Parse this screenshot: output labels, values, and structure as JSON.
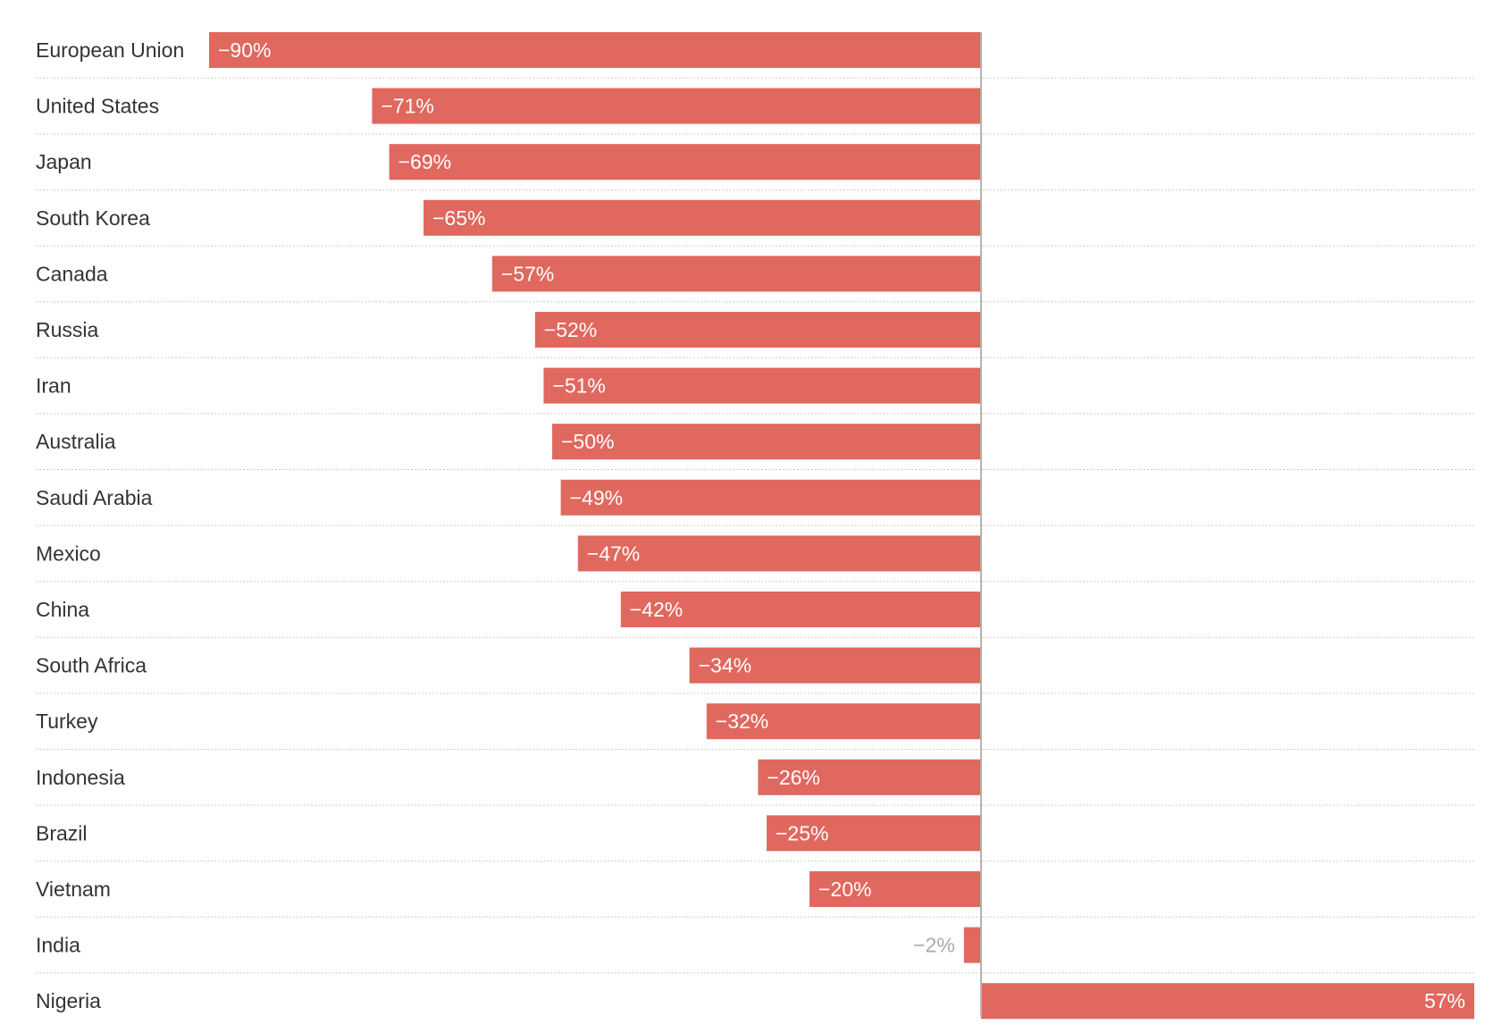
{
  "chart_data": {
    "type": "bar",
    "orientation": "horizontal",
    "title": "",
    "xlabel": "",
    "ylabel": "",
    "xlim": [
      -90,
      57
    ],
    "grid": false,
    "colors": {
      "bar": "#e0685e",
      "zero_line": "#b3b3b3",
      "row_divider": "#cccccc",
      "label": "#333333",
      "outside_value": "#aaaaaa",
      "inside_value": "#ffffff"
    },
    "categories": [
      "European Union",
      "United States",
      "Japan",
      "South Korea",
      "Canada",
      "Russia",
      "Iran",
      "Australia",
      "Saudi Arabia",
      "Mexico",
      "China",
      "South Africa",
      "Turkey",
      "Indonesia",
      "Brazil",
      "Vietnam",
      "India",
      "Nigeria"
    ],
    "values": [
      -90,
      -71,
      -69,
      -65,
      -57,
      -52,
      -51,
      -50,
      -49,
      -47,
      -42,
      -34,
      -32,
      -26,
      -25,
      -20,
      -2,
      57
    ],
    "value_labels": [
      "−90%",
      "−71%",
      "−69%",
      "−65%",
      "−57%",
      "−52%",
      "−51%",
      "−50%",
      "−49%",
      "−47%",
      "−42%",
      "−34%",
      "−32%",
      "−26%",
      "−25%",
      "−20%",
      "−2%",
      "57%"
    ]
  }
}
